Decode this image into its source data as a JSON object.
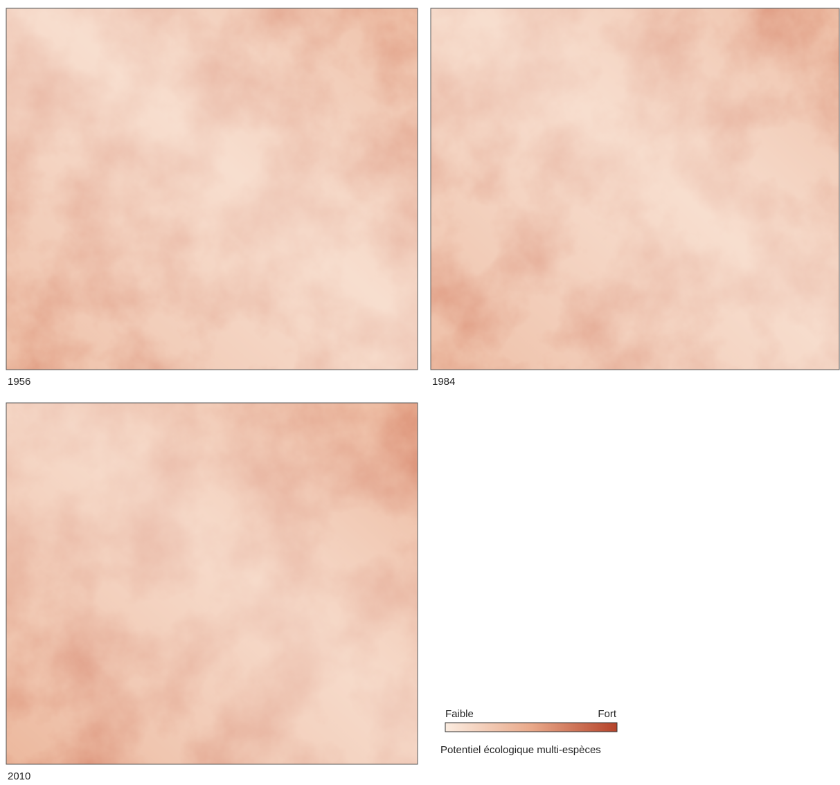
{
  "panels": [
    {
      "label": "1956"
    },
    {
      "label": "1984"
    },
    {
      "label": "2010"
    }
  ],
  "legend": {
    "low": "Faible",
    "high": "Fort",
    "title": "Potentiel écologique multi-espèces",
    "colors": [
      "#fbece0",
      "#e9a98a",
      "#b5432a"
    ]
  }
}
